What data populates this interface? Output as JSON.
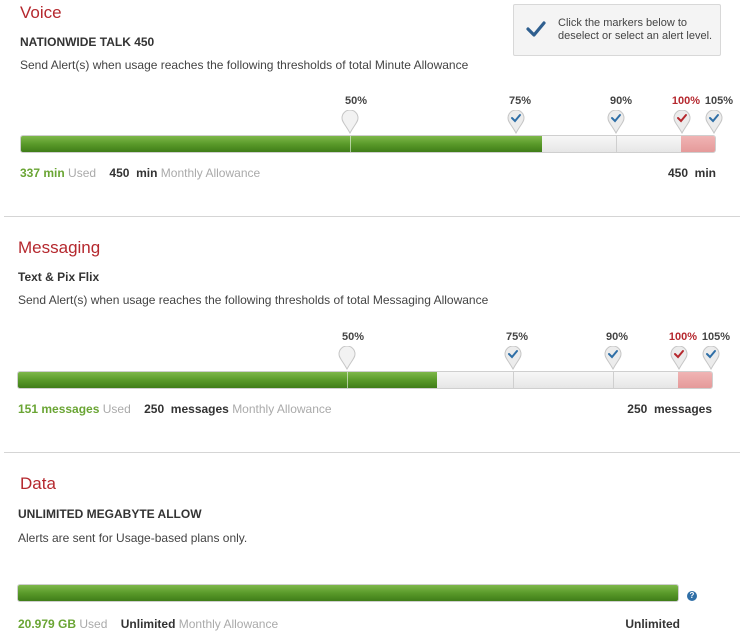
{
  "tip": {
    "text": "Click the markers below to deselect or select an alert level."
  },
  "voice": {
    "title": "Voice",
    "plan": "NATIONWIDE TALK 450",
    "desc": "Send Alert(s) when usage reaches the following thresholds of total Minute Allowance",
    "markers": [
      {
        "label": "50%",
        "state": "off"
      },
      {
        "label": "75%",
        "state": "on"
      },
      {
        "label": "90%",
        "state": "on"
      },
      {
        "label": "100%",
        "state": "red"
      },
      {
        "label": "105%",
        "state": "on"
      }
    ],
    "usage_fraction": 0.75,
    "used_value": "337 min",
    "used_suffix": "Used",
    "allowance_value": "450  min",
    "allowance_suffix": "Monthly Allowance",
    "total_right": "450  min"
  },
  "messaging": {
    "title": "Messaging",
    "plan": "Text & Pix Flix",
    "desc": "Send Alert(s) when usage reaches the following thresholds of total Messaging Allowance",
    "markers": [
      {
        "label": "50%",
        "state": "off"
      },
      {
        "label": "75%",
        "state": "on"
      },
      {
        "label": "90%",
        "state": "on"
      },
      {
        "label": "100%",
        "state": "red"
      },
      {
        "label": "105%",
        "state": "on"
      }
    ],
    "usage_fraction": 0.604,
    "used_value": "151 messages",
    "used_suffix": "Used",
    "allowance_value": "250  messages",
    "allowance_suffix": "Monthly Allowance",
    "total_right": "250  messages"
  },
  "data": {
    "title": "Data",
    "plan": "UNLIMITED MEGABYTE ALLOW",
    "desc": "Alerts are sent for Usage-based plans only.",
    "usage_fraction": 1.0,
    "used_value": "20.979 GB",
    "used_suffix": "Used",
    "allowance_value": "Unlimited",
    "allowance_suffix": "Monthly Allowance",
    "total_right": "Unlimited",
    "help_icon": "question-icon"
  },
  "colors": {
    "accent": "#b5282e",
    "green": "#5a9a2a",
    "over": "#e59a9a",
    "check": "#2f6fa7"
  }
}
